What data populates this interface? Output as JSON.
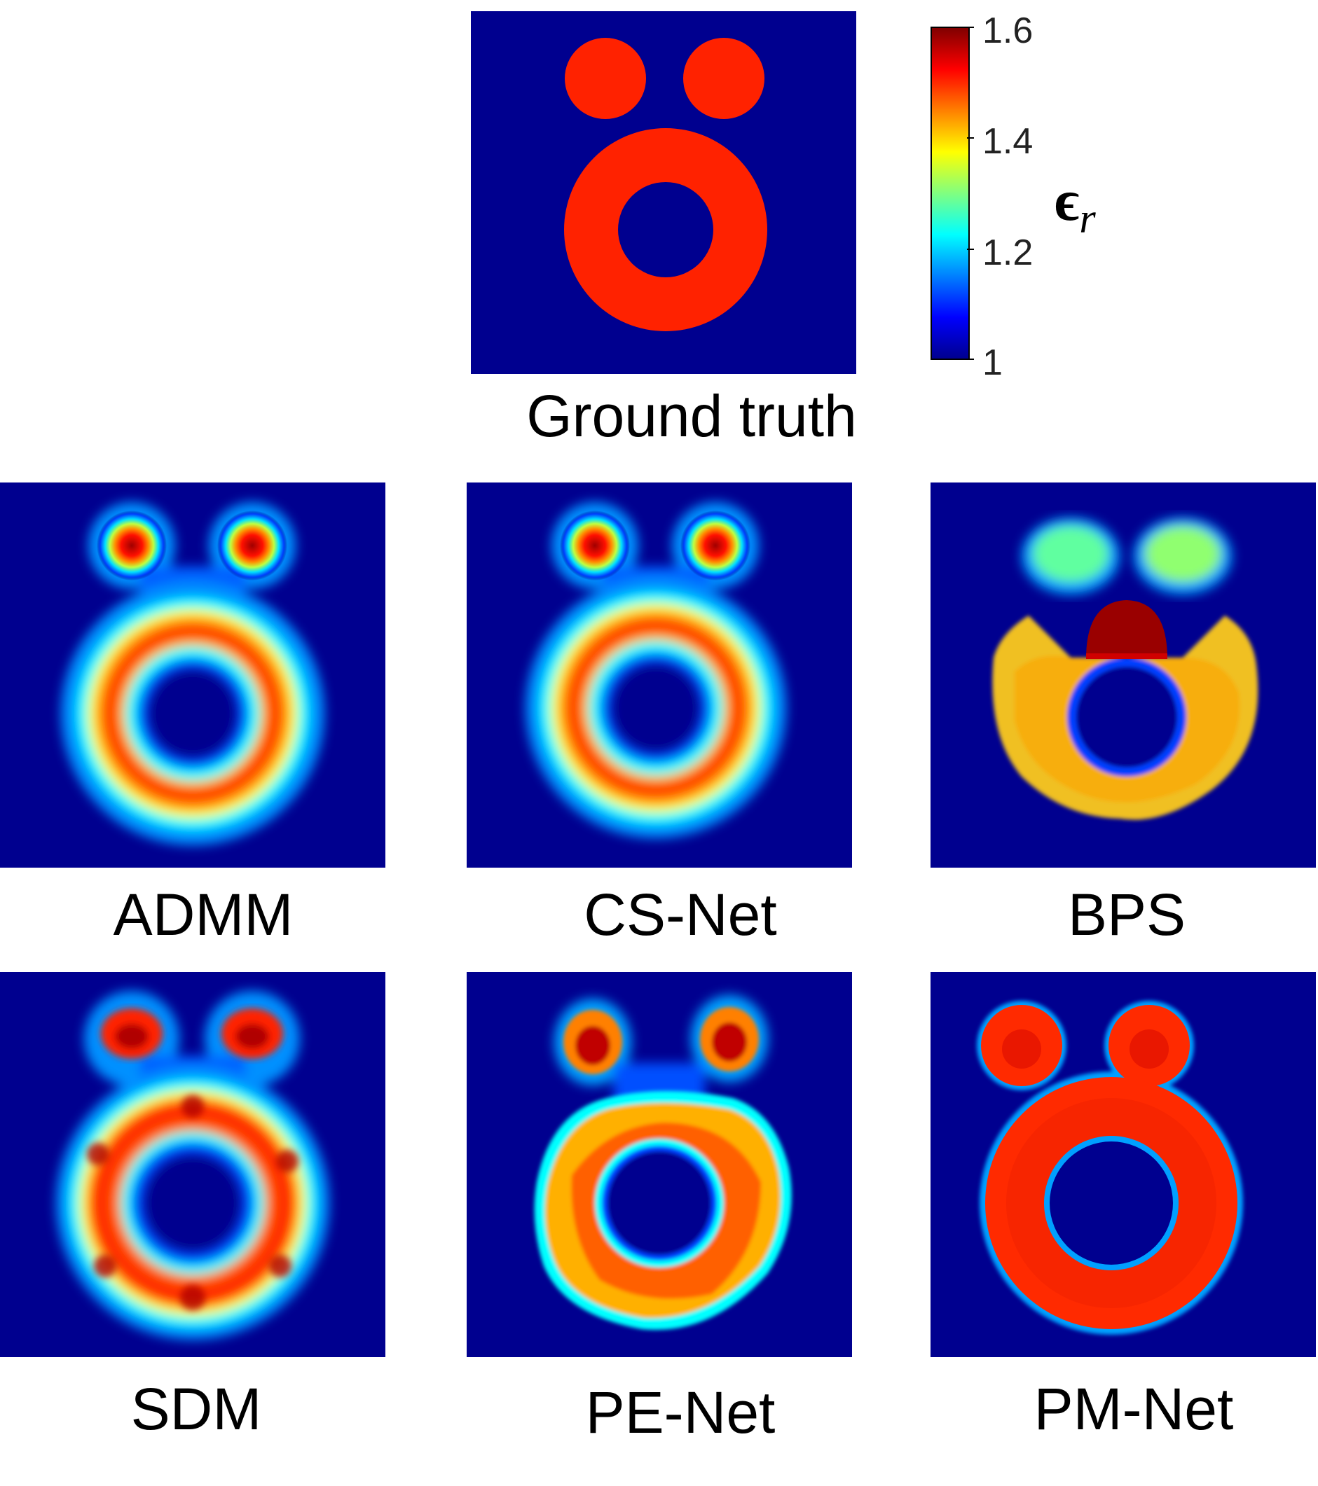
{
  "panels": [
    {
      "id": "ground-truth",
      "caption": "Ground truth"
    },
    {
      "id": "admm",
      "caption": "ADMM"
    },
    {
      "id": "cs-net",
      "caption": "CS-Net"
    },
    {
      "id": "bps",
      "caption": "BPS"
    },
    {
      "id": "sdm",
      "caption": "SDM"
    },
    {
      "id": "pe-net",
      "caption": "PE-Net"
    },
    {
      "id": "pm-net",
      "caption": "PM-Net"
    }
  ],
  "colorbar": {
    "label_symbol": "ϵ",
    "label_subscript": "r",
    "ticks": [
      "1.6",
      "1.4",
      "1.2",
      "1"
    ],
    "range": [
      1,
      1.6
    ],
    "colormap": "jet"
  },
  "colors": {
    "background_blue": "#00008f",
    "ground_truth_red": "#ff2200",
    "ring_red": "#ff2a00",
    "cyan": "#00ffff",
    "yellow": "#ffff30"
  }
}
